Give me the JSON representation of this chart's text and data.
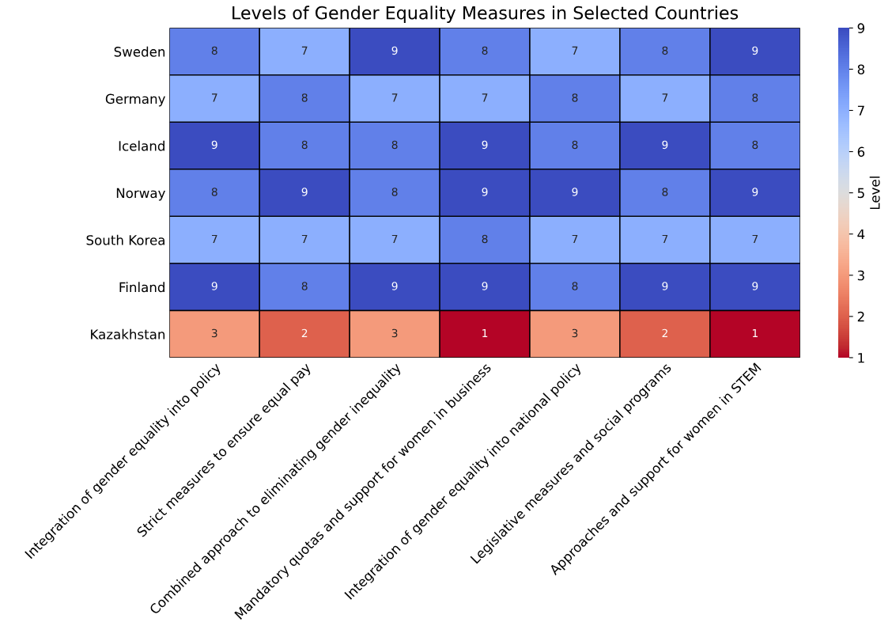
{
  "chart_data": {
    "type": "heatmap",
    "title": "Levels of Gender Equality Measures in Selected Countries",
    "categories": [
      "Integration of gender equality into policy",
      "Strict measures to ensure equal pay",
      "Combined approach to eliminating gender inequality",
      "Mandatory quotas and support for women in business",
      "Integration of gender equality into national policy",
      "Legislative measures and social programs",
      "Approaches and support for women in STEM"
    ],
    "y_categories": [
      "Sweden",
      "Germany",
      "Iceland",
      "Norway",
      "South Korea",
      "Finland",
      "Kazakhstan"
    ],
    "cells": [
      [
        8,
        7,
        9,
        8,
        7,
        8,
        9
      ],
      [
        7,
        8,
        7,
        7,
        8,
        7,
        8
      ],
      [
        9,
        8,
        8,
        9,
        8,
        9,
        8
      ],
      [
        8,
        9,
        8,
        9,
        9,
        8,
        9
      ],
      [
        7,
        7,
        7,
        8,
        7,
        7,
        7
      ],
      [
        9,
        8,
        9,
        9,
        8,
        9,
        9
      ],
      [
        3,
        2,
        3,
        1,
        3,
        2,
        1
      ]
    ],
    "clabel": "Level",
    "clim": [
      1,
      9
    ],
    "cticks": [
      1,
      2,
      3,
      4,
      5,
      6,
      7,
      8,
      9
    ],
    "data_labels": true
  }
}
